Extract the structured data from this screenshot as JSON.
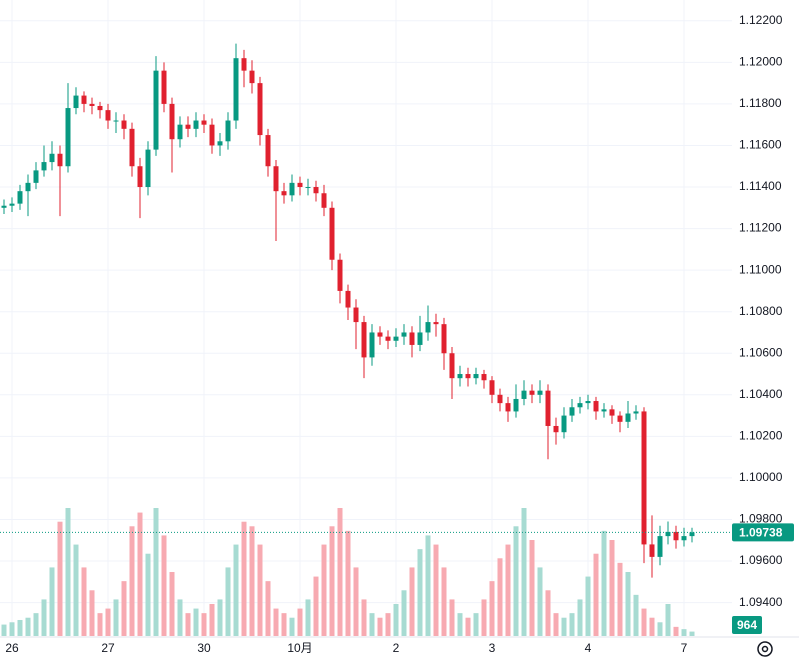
{
  "chart_data": {
    "type": "candlestick",
    "categories": [
      null,
      "26",
      null,
      null,
      null,
      null,
      null,
      null,
      null,
      null,
      null,
      null,
      null,
      "27",
      null,
      null,
      null,
      null,
      null,
      null,
      null,
      null,
      null,
      null,
      null,
      "30",
      null,
      null,
      null,
      null,
      null,
      null,
      null,
      null,
      null,
      null,
      null,
      "10月",
      null,
      null,
      null,
      null,
      null,
      null,
      null,
      null,
      null,
      null,
      null,
      "2",
      null,
      null,
      null,
      null,
      null,
      null,
      null,
      null,
      null,
      null,
      null,
      "3",
      null,
      null,
      null,
      null,
      null,
      null,
      null,
      null,
      null,
      null,
      null,
      "4",
      null,
      null,
      null,
      null,
      null,
      null,
      null,
      null,
      null,
      null,
      null,
      "7",
      null
    ],
    "open": [
      1.113,
      1.1131,
      1.1132,
      1.1138,
      1.1142,
      1.1148,
      1.1152,
      1.1156,
      1.115,
      1.1178,
      1.1184,
      1.118,
      1.1179,
      1.1177,
      1.1172,
      1.1172,
      1.1168,
      1.115,
      1.114,
      1.1158,
      1.1196,
      1.118,
      1.1163,
      1.117,
      1.1168,
      1.1172,
      1.117,
      1.116,
      1.1162,
      1.1172,
      1.1202,
      1.1196,
      1.119,
      1.1165,
      1.115,
      1.1138,
      1.1136,
      1.1142,
      1.114,
      1.114,
      1.1137,
      1.113,
      1.1105,
      1.109,
      1.1082,
      1.1075,
      1.1058,
      1.107,
      1.1068,
      1.1066,
      1.1068,
      1.107,
      1.1064,
      1.107,
      1.1075,
      1.1074,
      1.106,
      1.1048,
      1.105,
      1.1048,
      1.105,
      1.1047,
      1.104,
      1.1036,
      1.1032,
      1.1038,
      1.1042,
      1.104,
      1.1042,
      1.1025,
      1.1022,
      1.103,
      1.1034,
      1.1036,
      1.1037,
      1.1032,
      1.1033,
      1.103,
      1.1027,
      1.1031,
      1.1032,
      1.0968,
      1.0962,
      1.0972,
      1.0974,
      1.097,
      1.0972
    ],
    "high": [
      1.1134,
      1.1135,
      1.1141,
      1.1146,
      1.1152,
      1.116,
      1.1162,
      1.116,
      1.119,
      1.1188,
      1.1186,
      1.1183,
      1.1181,
      1.118,
      1.1176,
      1.1175,
      1.1171,
      1.1154,
      1.1162,
      1.1203,
      1.12,
      1.1183,
      1.1174,
      1.1174,
      1.1176,
      1.1175,
      1.1173,
      1.1166,
      1.1176,
      1.1209,
      1.1206,
      1.1201,
      1.1193,
      1.1168,
      1.1153,
      1.1142,
      1.1146,
      1.1145,
      1.1144,
      1.1143,
      1.1141,
      1.1133,
      1.1108,
      1.1093,
      1.1086,
      1.1078,
      1.1074,
      1.1073,
      1.1071,
      1.1072,
      1.1074,
      1.1073,
      1.1078,
      1.1083,
      1.1079,
      1.1077,
      1.1063,
      1.1054,
      1.1053,
      1.1053,
      1.1052,
      1.1049,
      1.1043,
      1.1039,
      1.1045,
      1.1047,
      1.1045,
      1.1047,
      1.1045,
      1.1029,
      1.1034,
      1.1038,
      1.1039,
      1.104,
      1.1039,
      1.1036,
      1.1035,
      1.1032,
      1.1037,
      1.1035,
      1.1034,
      1.0982,
      1.0977,
      1.0979,
      1.0977,
      1.0976,
      1.0976
    ],
    "low": [
      1.1127,
      1.1128,
      1.1129,
      1.1126,
      1.1139,
      1.1145,
      1.1148,
      1.1126,
      1.1147,
      1.1175,
      1.1176,
      1.1175,
      1.1173,
      1.1168,
      1.1166,
      1.1163,
      1.1145,
      1.1125,
      1.1136,
      1.1155,
      1.1176,
      1.1147,
      1.1159,
      1.1164,
      1.1164,
      1.1166,
      1.1156,
      1.1155,
      1.1158,
      1.1168,
      1.1188,
      1.1185,
      1.116,
      1.1145,
      1.1114,
      1.1132,
      1.1133,
      1.1136,
      1.1136,
      1.1133,
      1.1126,
      1.11,
      1.1084,
      1.1076,
      1.1062,
      1.1048,
      1.1054,
      1.1064,
      1.1062,
      1.1063,
      1.1064,
      1.1058,
      1.1061,
      1.1066,
      1.1068,
      1.1052,
      1.1038,
      1.1044,
      1.1044,
      1.1045,
      1.1043,
      1.1036,
      1.1032,
      1.1027,
      1.1029,
      1.1035,
      1.1036,
      1.1036,
      1.1009,
      1.1016,
      1.1019,
      1.1027,
      1.1031,
      1.1033,
      1.1028,
      1.1029,
      1.1026,
      1.1022,
      1.1024,
      1.1028,
      1.0959,
      1.0952,
      1.0958,
      1.0968,
      1.0966,
      1.0967,
      1.0969
    ],
    "close": [
      1.1131,
      1.1132,
      1.1138,
      1.1142,
      1.1148,
      1.1152,
      1.1156,
      1.115,
      1.1178,
      1.1184,
      1.118,
      1.1179,
      1.1177,
      1.1172,
      1.1172,
      1.1168,
      1.115,
      1.114,
      1.1158,
      1.1196,
      1.118,
      1.1163,
      1.117,
      1.1168,
      1.1172,
      1.117,
      1.116,
      1.1162,
      1.1172,
      1.1202,
      1.1196,
      1.119,
      1.1165,
      1.115,
      1.1138,
      1.1136,
      1.1142,
      1.114,
      1.114,
      1.1137,
      1.113,
      1.1105,
      1.109,
      1.1082,
      1.1075,
      1.1058,
      1.107,
      1.1068,
      1.1066,
      1.1068,
      1.107,
      1.1064,
      1.107,
      1.1075,
      1.1074,
      1.106,
      1.1048,
      1.105,
      1.1048,
      1.105,
      1.1047,
      1.104,
      1.1036,
      1.1032,
      1.1038,
      1.1042,
      1.104,
      1.1042,
      1.1025,
      1.1022,
      1.103,
      1.1034,
      1.1036,
      1.1037,
      1.1032,
      1.1033,
      1.103,
      1.1027,
      1.1031,
      1.1032,
      1.0968,
      1.0962,
      1.0972,
      1.0974,
      1.097,
      1.0972,
      1.09738
    ],
    "volume": [
      2500,
      3000,
      3500,
      4000,
      5000,
      8000,
      15000,
      25000,
      28000,
      20000,
      15000,
      10000,
      5000,
      6000,
      8000,
      12000,
      24000,
      27000,
      18000,
      28000,
      22000,
      14000,
      8000,
      5000,
      6000,
      5000,
      7000,
      8000,
      15000,
      20000,
      25000,
      24000,
      20000,
      12000,
      6000,
      5000,
      4000,
      6000,
      8000,
      13000,
      20000,
      24000,
      28000,
      23000,
      15000,
      8000,
      5000,
      4000,
      5000,
      7000,
      10000,
      15000,
      19000,
      22000,
      20000,
      15000,
      8000,
      5000,
      4000,
      5000,
      8000,
      12000,
      17000,
      20000,
      24000,
      28000,
      21000,
      15000,
      10000,
      5000,
      4000,
      5000,
      8000,
      13000,
      18000,
      23000,
      21000,
      16000,
      14000,
      9000,
      6000,
      4000,
      3000,
      7000,
      2000,
      1500,
      964
    ],
    "up_color": "#089981",
    "down_color": "#e0212f",
    "up_volume_color": "#a7dbd2",
    "down_volume_color": "#f7aab1",
    "ylim": [
      1.0922,
      1.123
    ],
    "yticks": [
      {
        "value": 1.122,
        "label": "1.12200"
      },
      {
        "value": 1.12,
        "label": "1.12000"
      },
      {
        "value": 1.118,
        "label": "1.11800"
      },
      {
        "value": 1.116,
        "label": "1.11600"
      },
      {
        "value": 1.114,
        "label": "1.11400"
      },
      {
        "value": 1.112,
        "label": "1.11200"
      },
      {
        "value": 1.11,
        "label": "1.11000"
      },
      {
        "value": 1.108,
        "label": "1.10800"
      },
      {
        "value": 1.106,
        "label": "1.10600"
      },
      {
        "value": 1.104,
        "label": "1.10400"
      },
      {
        "value": 1.102,
        "label": "1.10200"
      },
      {
        "value": 1.1,
        "label": "1.10000"
      },
      {
        "value": 1.098,
        "label": "1.09800"
      },
      {
        "value": 1.096,
        "label": "1.09600"
      },
      {
        "value": 1.094,
        "label": "1.09400"
      }
    ],
    "grid": true
  }
}
